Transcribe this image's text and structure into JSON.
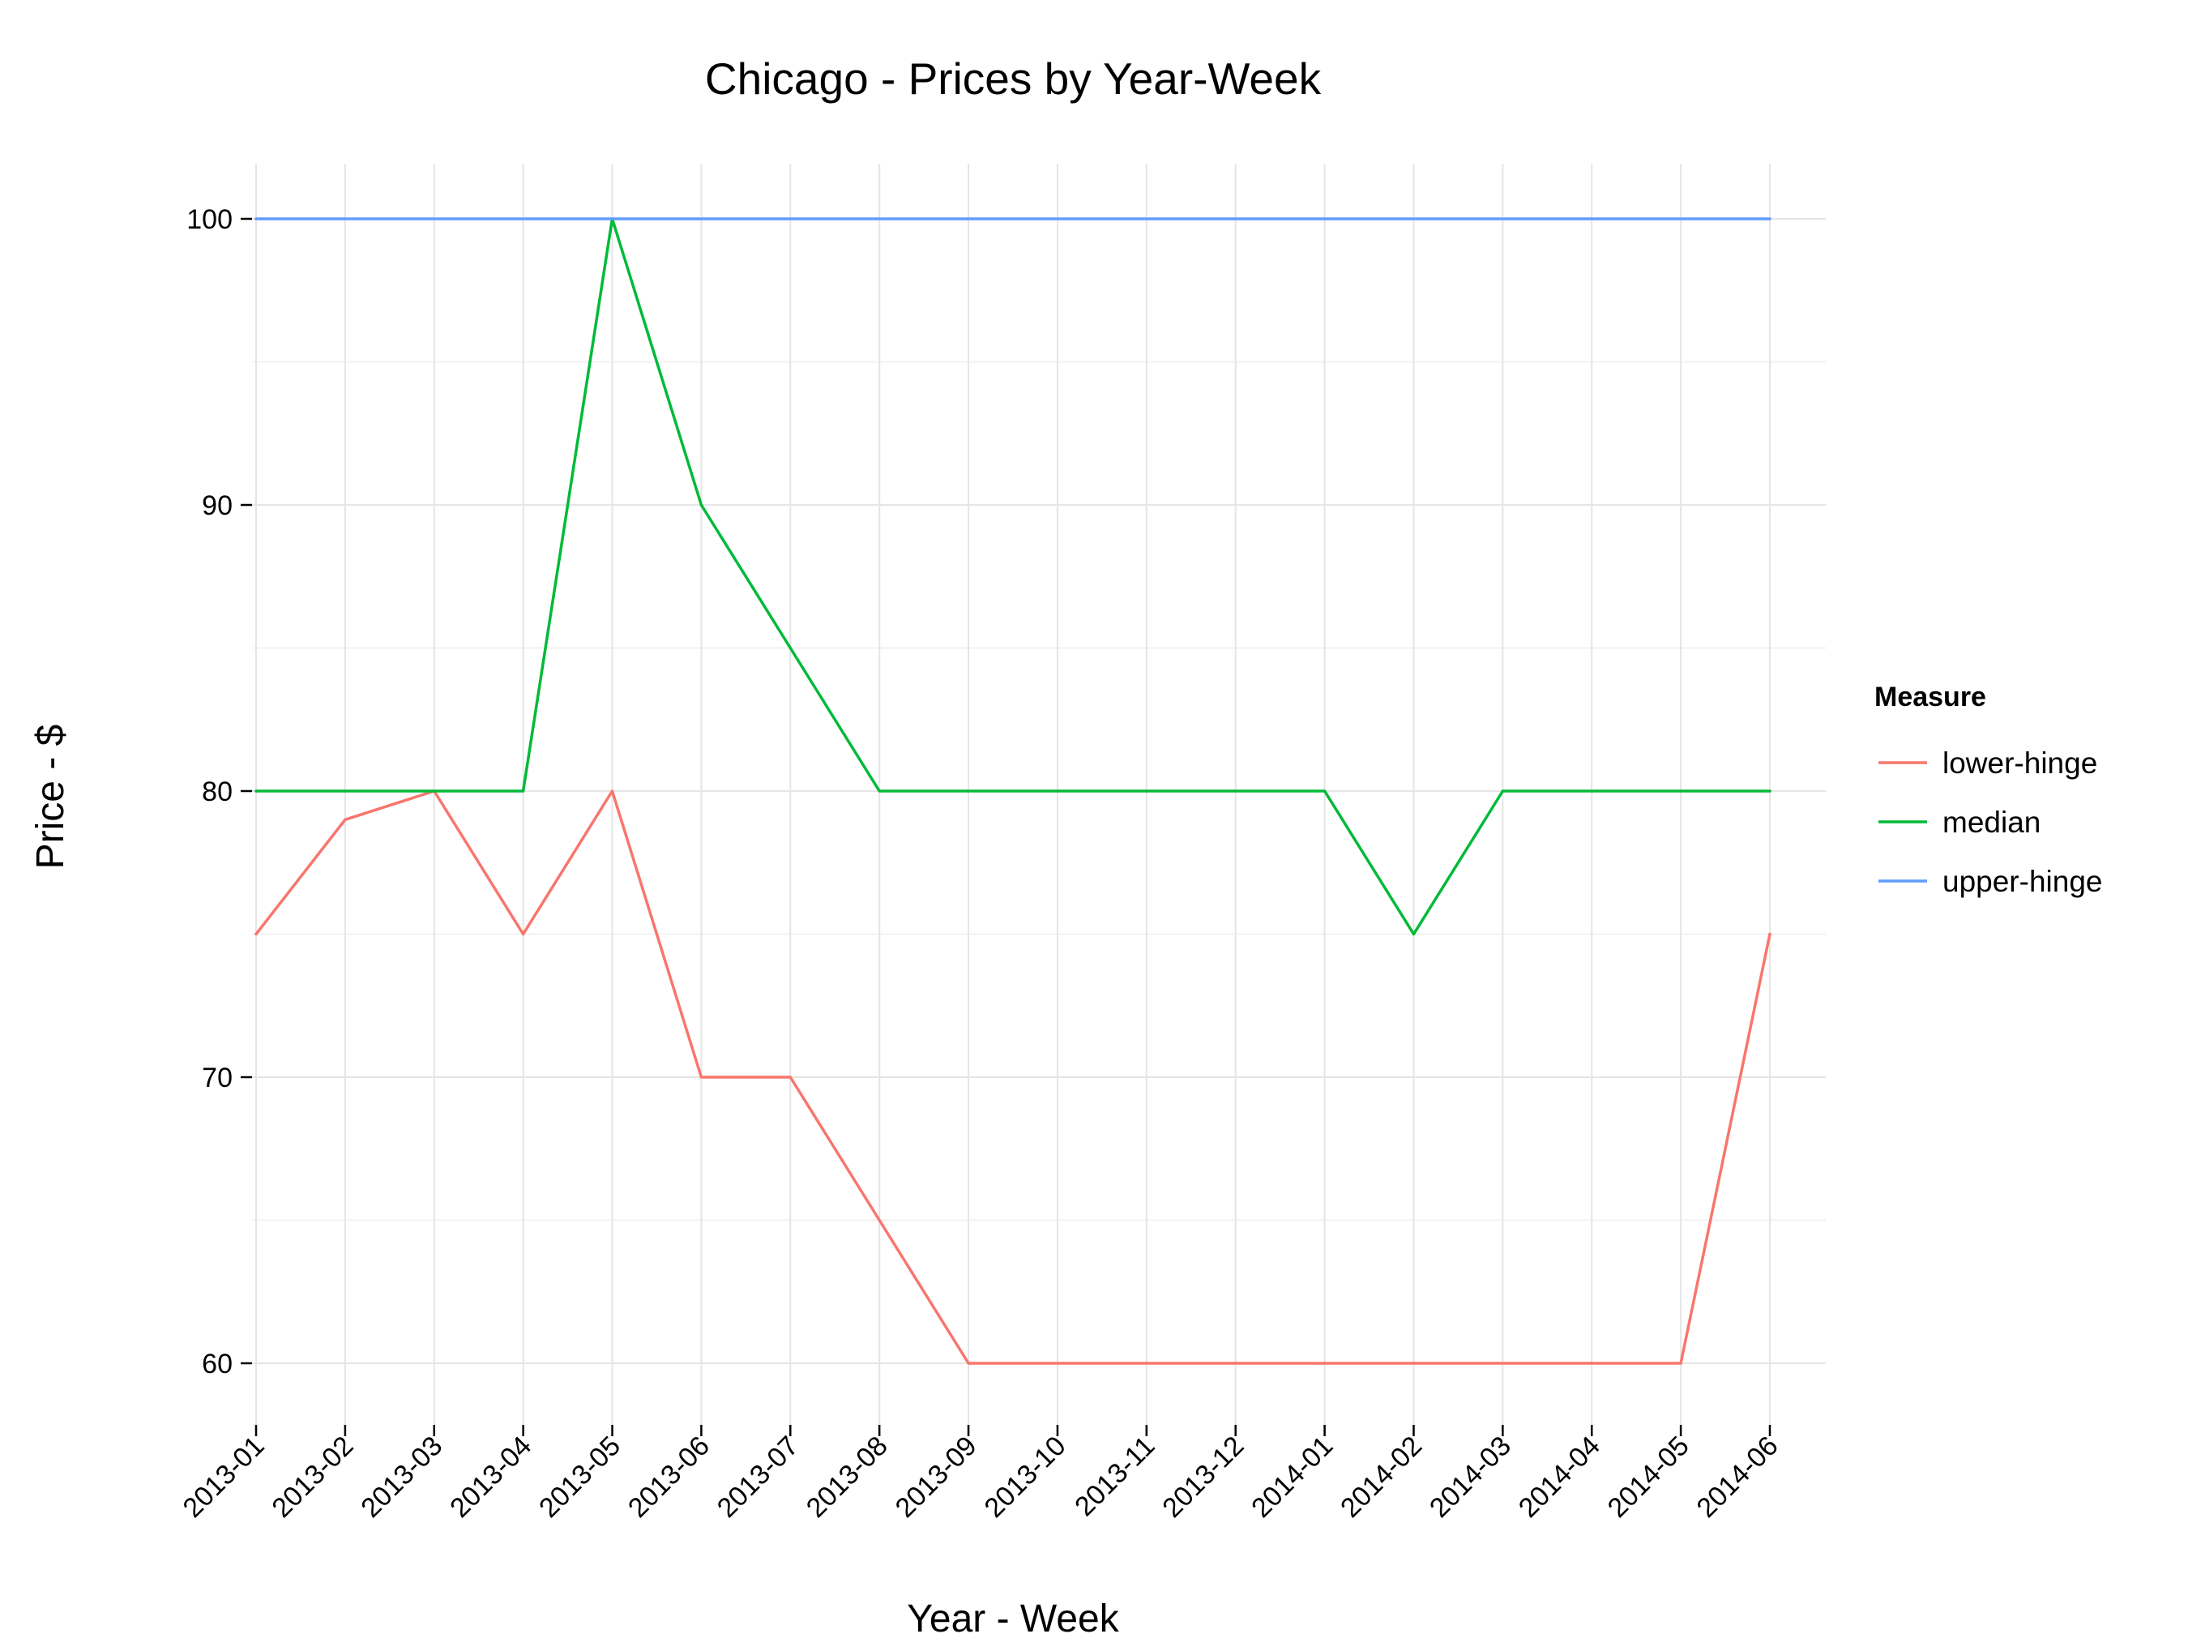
{
  "chart_data": {
    "type": "line",
    "title": "Chicago - Prices by Year-Week",
    "xlabel": "Year - Week",
    "ylabel": "Price - $",
    "categories": [
      "2013-01",
      "2013-02",
      "2013-03",
      "2013-04",
      "2013-05",
      "2013-06",
      "2013-07",
      "2013-08",
      "2013-09",
      "2013-10",
      "2013-11",
      "2013-12",
      "2014-01",
      "2014-02",
      "2014-03",
      "2014-04",
      "2014-05",
      "2014-06"
    ],
    "ylim": [
      58,
      102
    ],
    "yticks": [
      60,
      70,
      80,
      90,
      100
    ],
    "yticks_labels": [
      "60",
      "70",
      "80",
      "90",
      "100"
    ],
    "grid": true,
    "legend": {
      "title": "Measure",
      "position": "right"
    },
    "series": [
      {
        "name": "lower-hinge",
        "color": "#F8766D",
        "values": [
          75,
          79,
          80,
          75,
          80,
          70,
          70,
          65,
          60,
          60,
          60,
          60,
          60,
          60,
          60,
          60,
          60,
          75
        ]
      },
      {
        "name": "median",
        "color": "#00BA38",
        "values": [
          80,
          80,
          80,
          80,
          100,
          90,
          85,
          80,
          80,
          80,
          80,
          80,
          80,
          75,
          80,
          80,
          80,
          80
        ]
      },
      {
        "name": "upper-hinge",
        "color": "#619CFF",
        "values": [
          100,
          100,
          100,
          100,
          100,
          100,
          100,
          100,
          100,
          100,
          100,
          100,
          100,
          100,
          100,
          100,
          100,
          100
        ]
      }
    ]
  }
}
